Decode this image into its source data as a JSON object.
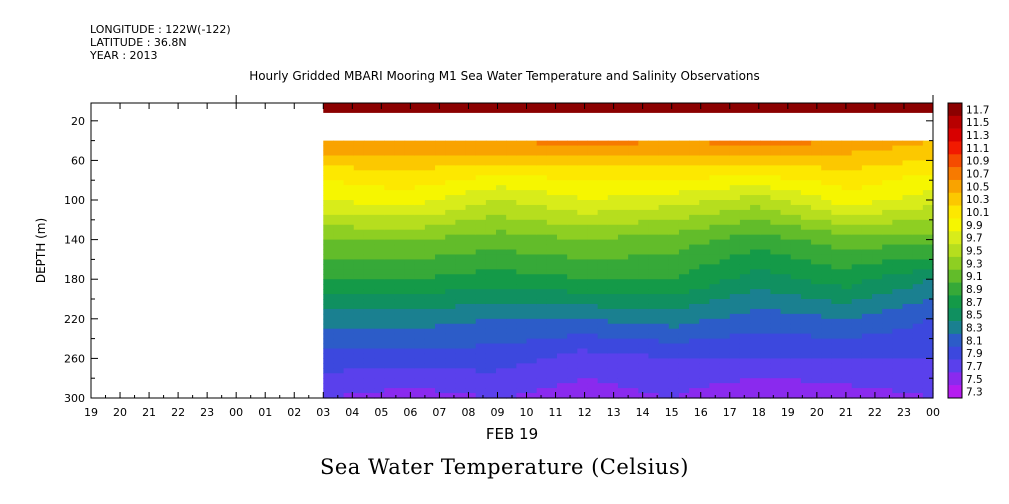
{
  "header": {
    "longitude": "LONGITUDE : 122W(-122)",
    "latitude": "LATITUDE : 36.8N",
    "year": "YEAR : 2013"
  },
  "chart_data": {
    "type": "heatmap",
    "title": "Hourly Gridded MBARI Mooring M1 Sea Water Temperature and Salinity Observations",
    "bottom_title": "Sea Water Temperature (Celsius)",
    "xlabel": "FEB 19",
    "ylabel": "DEPTH (m)",
    "x_ticks": [
      "19",
      "20",
      "21",
      "22",
      "23",
      "00",
      "01",
      "02",
      "03",
      "04",
      "05",
      "06",
      "07",
      "08",
      "09",
      "10",
      "11",
      "12",
      "13",
      "14",
      "15",
      "16",
      "17",
      "18",
      "19",
      "20",
      "21",
      "22",
      "23",
      "00"
    ],
    "data_start_tick": "03",
    "y_ticks": [
      20,
      60,
      100,
      140,
      180,
      220,
      260,
      300
    ],
    "ylim": [
      300,
      2
    ],
    "surface_band": {
      "depth_range": [
        2,
        12
      ],
      "value": 11.7
    },
    "data_depth_range": [
      40,
      300
    ],
    "depths": [
      40,
      60,
      80,
      100,
      140,
      180,
      220,
      260,
      300
    ],
    "times": [
      "03",
      "06",
      "09",
      "12",
      "15",
      "18",
      "21",
      "00"
    ],
    "temperature": [
      [
        10.6,
        10.6,
        10.6,
        10.7,
        10.6,
        10.7,
        10.6,
        10.4
      ],
      [
        10.3,
        10.3,
        10.3,
        10.3,
        10.3,
        10.3,
        10.3,
        10.2
      ],
      [
        10.0,
        10.1,
        9.9,
        10.0,
        10.0,
        9.9,
        10.1,
        9.9
      ],
      [
        9.8,
        9.9,
        9.6,
        9.8,
        9.7,
        9.5,
        9.9,
        9.7
      ],
      [
        9.2,
        9.2,
        9.1,
        9.2,
        9.1,
        8.9,
        9.1,
        9.1
      ],
      [
        8.8,
        8.8,
        8.7,
        8.8,
        8.8,
        8.5,
        8.7,
        8.4
      ],
      [
        8.3,
        8.3,
        8.2,
        8.2,
        8.3,
        8.1,
        8.2,
        8.0
      ],
      [
        7.9,
        7.9,
        7.9,
        7.7,
        7.8,
        7.8,
        7.8,
        7.8
      ],
      [
        7.6,
        7.5,
        7.6,
        7.5,
        7.6,
        7.4,
        7.5,
        7.6
      ]
    ],
    "legend": {
      "placement": "right",
      "levels": [
        "11.7",
        "11.5",
        "11.3",
        "11.1",
        "10.9",
        "10.7",
        "10.5",
        "10.3",
        "10.1",
        "9.9",
        "9.7",
        "9.5",
        "9.3",
        "9.1",
        "8.9",
        "8.7",
        "8.5",
        "8.3",
        "8.1",
        "7.9",
        "7.7",
        "7.5",
        "7.3"
      ],
      "colors": [
        "#8b0000",
        "#b80000",
        "#d80000",
        "#f21a00",
        "#f54b00",
        "#f77a00",
        "#f9a300",
        "#fcc800",
        "#fde800",
        "#f6f600",
        "#d8ec1a",
        "#b6de1e",
        "#8ecf22",
        "#62bc2a",
        "#36a938",
        "#149a48",
        "#109060",
        "#1a8090",
        "#2c5cc8",
        "#3c48de",
        "#5a40ec",
        "#8a2aee",
        "#b51cf0"
      ]
    }
  }
}
